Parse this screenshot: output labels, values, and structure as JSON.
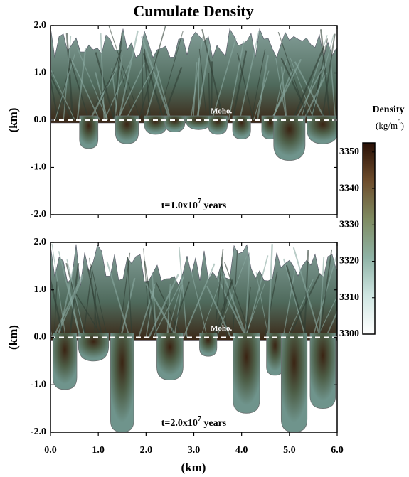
{
  "figure": {
    "title": "Cumulate Density",
    "xlabel": "(km)"
  },
  "chart_data": [
    {
      "type": "field",
      "ylabel": "(km)",
      "xlim": [
        0,
        6
      ],
      "ylim": [
        -2,
        2
      ],
      "yticks": [
        {
          "value": 2,
          "label": "2.0"
        },
        {
          "value": 1,
          "label": "1.0"
        },
        {
          "value": 0,
          "label": "0.0"
        },
        {
          "value": -1,
          "label": "-1.0"
        },
        {
          "value": -2,
          "label": "-2.0"
        }
      ],
      "moho": {
        "label": "Moho.",
        "y": 0
      },
      "time_label": {
        "prefix": "t=1.0x10",
        "exponent": "7",
        "suffix": " years"
      }
    },
    {
      "type": "field",
      "ylabel": "(km)",
      "xlim": [
        0,
        6
      ],
      "ylim": [
        -2,
        2
      ],
      "xticks": [
        {
          "value": 0,
          "label": "0.0"
        },
        {
          "value": 1,
          "label": "1.0"
        },
        {
          "value": 2,
          "label": "2.0"
        },
        {
          "value": 3,
          "label": "3.0"
        },
        {
          "value": 4,
          "label": "4.0"
        },
        {
          "value": 5,
          "label": "5.0"
        },
        {
          "value": 6,
          "label": "6.0"
        }
      ],
      "yticks": [
        {
          "value": 2,
          "label": "2.0"
        },
        {
          "value": 1,
          "label": "1.0"
        },
        {
          "value": 0,
          "label": "0.0"
        },
        {
          "value": -1,
          "label": "-1.0"
        },
        {
          "value": -2,
          "label": "-2.0"
        }
      ],
      "moho": {
        "label": "Moho.",
        "y": 0
      },
      "time_label": {
        "prefix": "t=2.0x10",
        "exponent": "7",
        "suffix": " years"
      }
    },
    {
      "type": "colorbar",
      "title": "Density",
      "unit": {
        "prefix": "(kg/m",
        "exponent": "3",
        "suffix": ")"
      },
      "lim": [
        3300,
        3352.5
      ],
      "ticks": [
        3300,
        3310,
        3320,
        3330,
        3340,
        3350
      ],
      "colors": [
        "#ffffff",
        "#cfe6e2",
        "#8fb3a6",
        "#7f8c62",
        "#6e4d2c",
        "#2a1006"
      ]
    }
  ]
}
